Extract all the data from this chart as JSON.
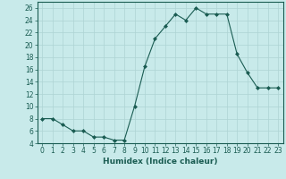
{
  "x": [
    0,
    1,
    2,
    3,
    4,
    5,
    6,
    7,
    8,
    9,
    10,
    11,
    12,
    13,
    14,
    15,
    16,
    17,
    18,
    19,
    20,
    21,
    22,
    23
  ],
  "y": [
    8,
    8,
    7,
    6,
    6,
    5,
    5,
    4.5,
    4.5,
    10,
    16.5,
    21,
    23,
    25,
    24,
    26,
    25,
    25,
    25,
    18.5,
    15.5,
    13,
    13,
    13
  ],
  "line_color": "#1a5c52",
  "marker_color": "#1a5c52",
  "bg_color": "#c8eaea",
  "grid_color": "#aed4d4",
  "xlabel": "Humidex (Indice chaleur)",
  "ylim": [
    4,
    27
  ],
  "xlim": [
    -0.5,
    23.5
  ],
  "yticks": [
    4,
    6,
    8,
    10,
    12,
    14,
    16,
    18,
    20,
    22,
    24,
    26
  ],
  "xticks": [
    0,
    1,
    2,
    3,
    4,
    5,
    6,
    7,
    8,
    9,
    10,
    11,
    12,
    13,
    14,
    15,
    16,
    17,
    18,
    19,
    20,
    21,
    22,
    23
  ],
  "xlabel_fontsize": 6.5,
  "tick_fontsize": 5.5
}
